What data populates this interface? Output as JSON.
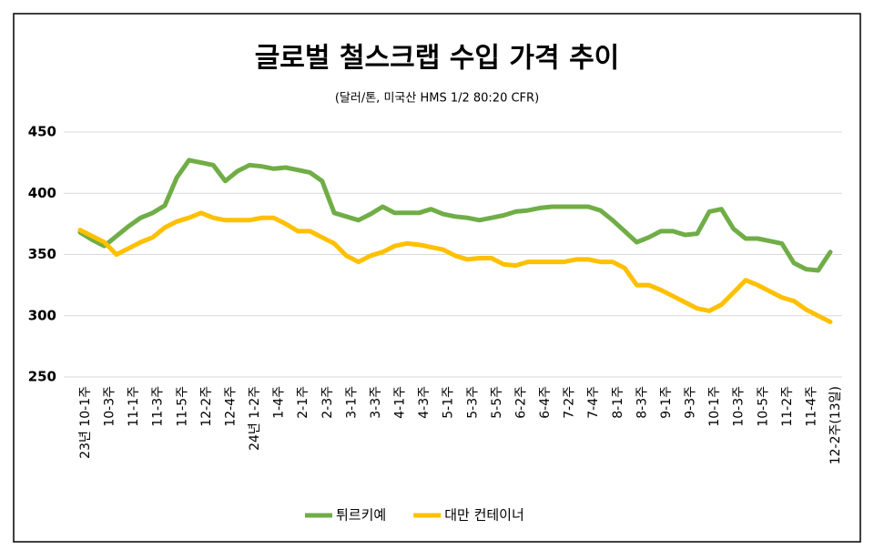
{
  "chart_data": {
    "type": "line",
    "title": "글로벌 철스크랩 수입 가격 추이",
    "subtitle": "(달러/톤, 미국산 HMS 1/2 80:20 CFR)",
    "categories": [
      "23년 10-1주",
      null,
      "10-3주",
      null,
      "11-1주",
      null,
      "11-3주",
      null,
      "11-5주",
      null,
      "12-2주",
      null,
      "12-4주",
      null,
      "24년 1-2주",
      null,
      "1-4주",
      null,
      "2-1주",
      null,
      "2-3주",
      null,
      "3-1주",
      null,
      "3-3주",
      null,
      "4-1주",
      null,
      "4-3주",
      null,
      "5-1주",
      null,
      "5-3주",
      null,
      "5-5주",
      null,
      "6-2주",
      null,
      "6-4주",
      null,
      "7-2주",
      null,
      "7-4주",
      null,
      "8-1주",
      null,
      "8-3주",
      null,
      "9-1주",
      null,
      "9-3주",
      null,
      "10-1주",
      null,
      "10-3주",
      null,
      "10-5주",
      null,
      "11-2주",
      null,
      "11-4주",
      null,
      "12-2주(13일)"
    ],
    "series": [
      {
        "name": "튀르키예",
        "color": "#70ad47",
        "values": [
          368,
          362,
          357,
          365,
          373,
          380,
          384,
          390,
          413,
          427,
          425,
          423,
          410,
          418,
          423,
          422,
          420,
          421,
          419,
          417,
          410,
          384,
          381,
          378,
          383,
          389,
          384,
          384,
          384,
          387,
          383,
          381,
          380,
          378,
          380,
          382,
          385,
          386,
          388,
          389,
          389,
          389,
          389,
          386,
          378,
          369,
          360,
          364,
          369,
          369,
          366,
          367,
          385,
          387,
          371,
          363,
          363,
          361,
          359,
          343,
          338,
          337,
          352
        ]
      },
      {
        "name": "대만 컨테이너",
        "color": "#ffc000",
        "values": [
          370,
          365,
          360,
          350,
          355,
          360,
          364,
          372,
          377,
          380,
          384,
          380,
          378,
          378,
          378,
          380,
          380,
          375,
          369,
          369,
          364,
          359,
          349,
          344,
          349,
          352,
          357,
          359,
          358,
          356,
          354,
          349,
          346,
          347,
          347,
          342,
          341,
          344,
          344,
          344,
          344,
          346,
          346,
          344,
          344,
          339,
          325,
          325,
          321,
          316,
          311,
          306,
          304,
          309,
          319,
          329,
          325,
          320,
          315,
          312,
          305,
          300,
          295
        ]
      }
    ],
    "ylim": [
      250,
      450
    ],
    "yticks": [
      250,
      300,
      350,
      400,
      450
    ],
    "grid": true,
    "legend": "bottom"
  }
}
